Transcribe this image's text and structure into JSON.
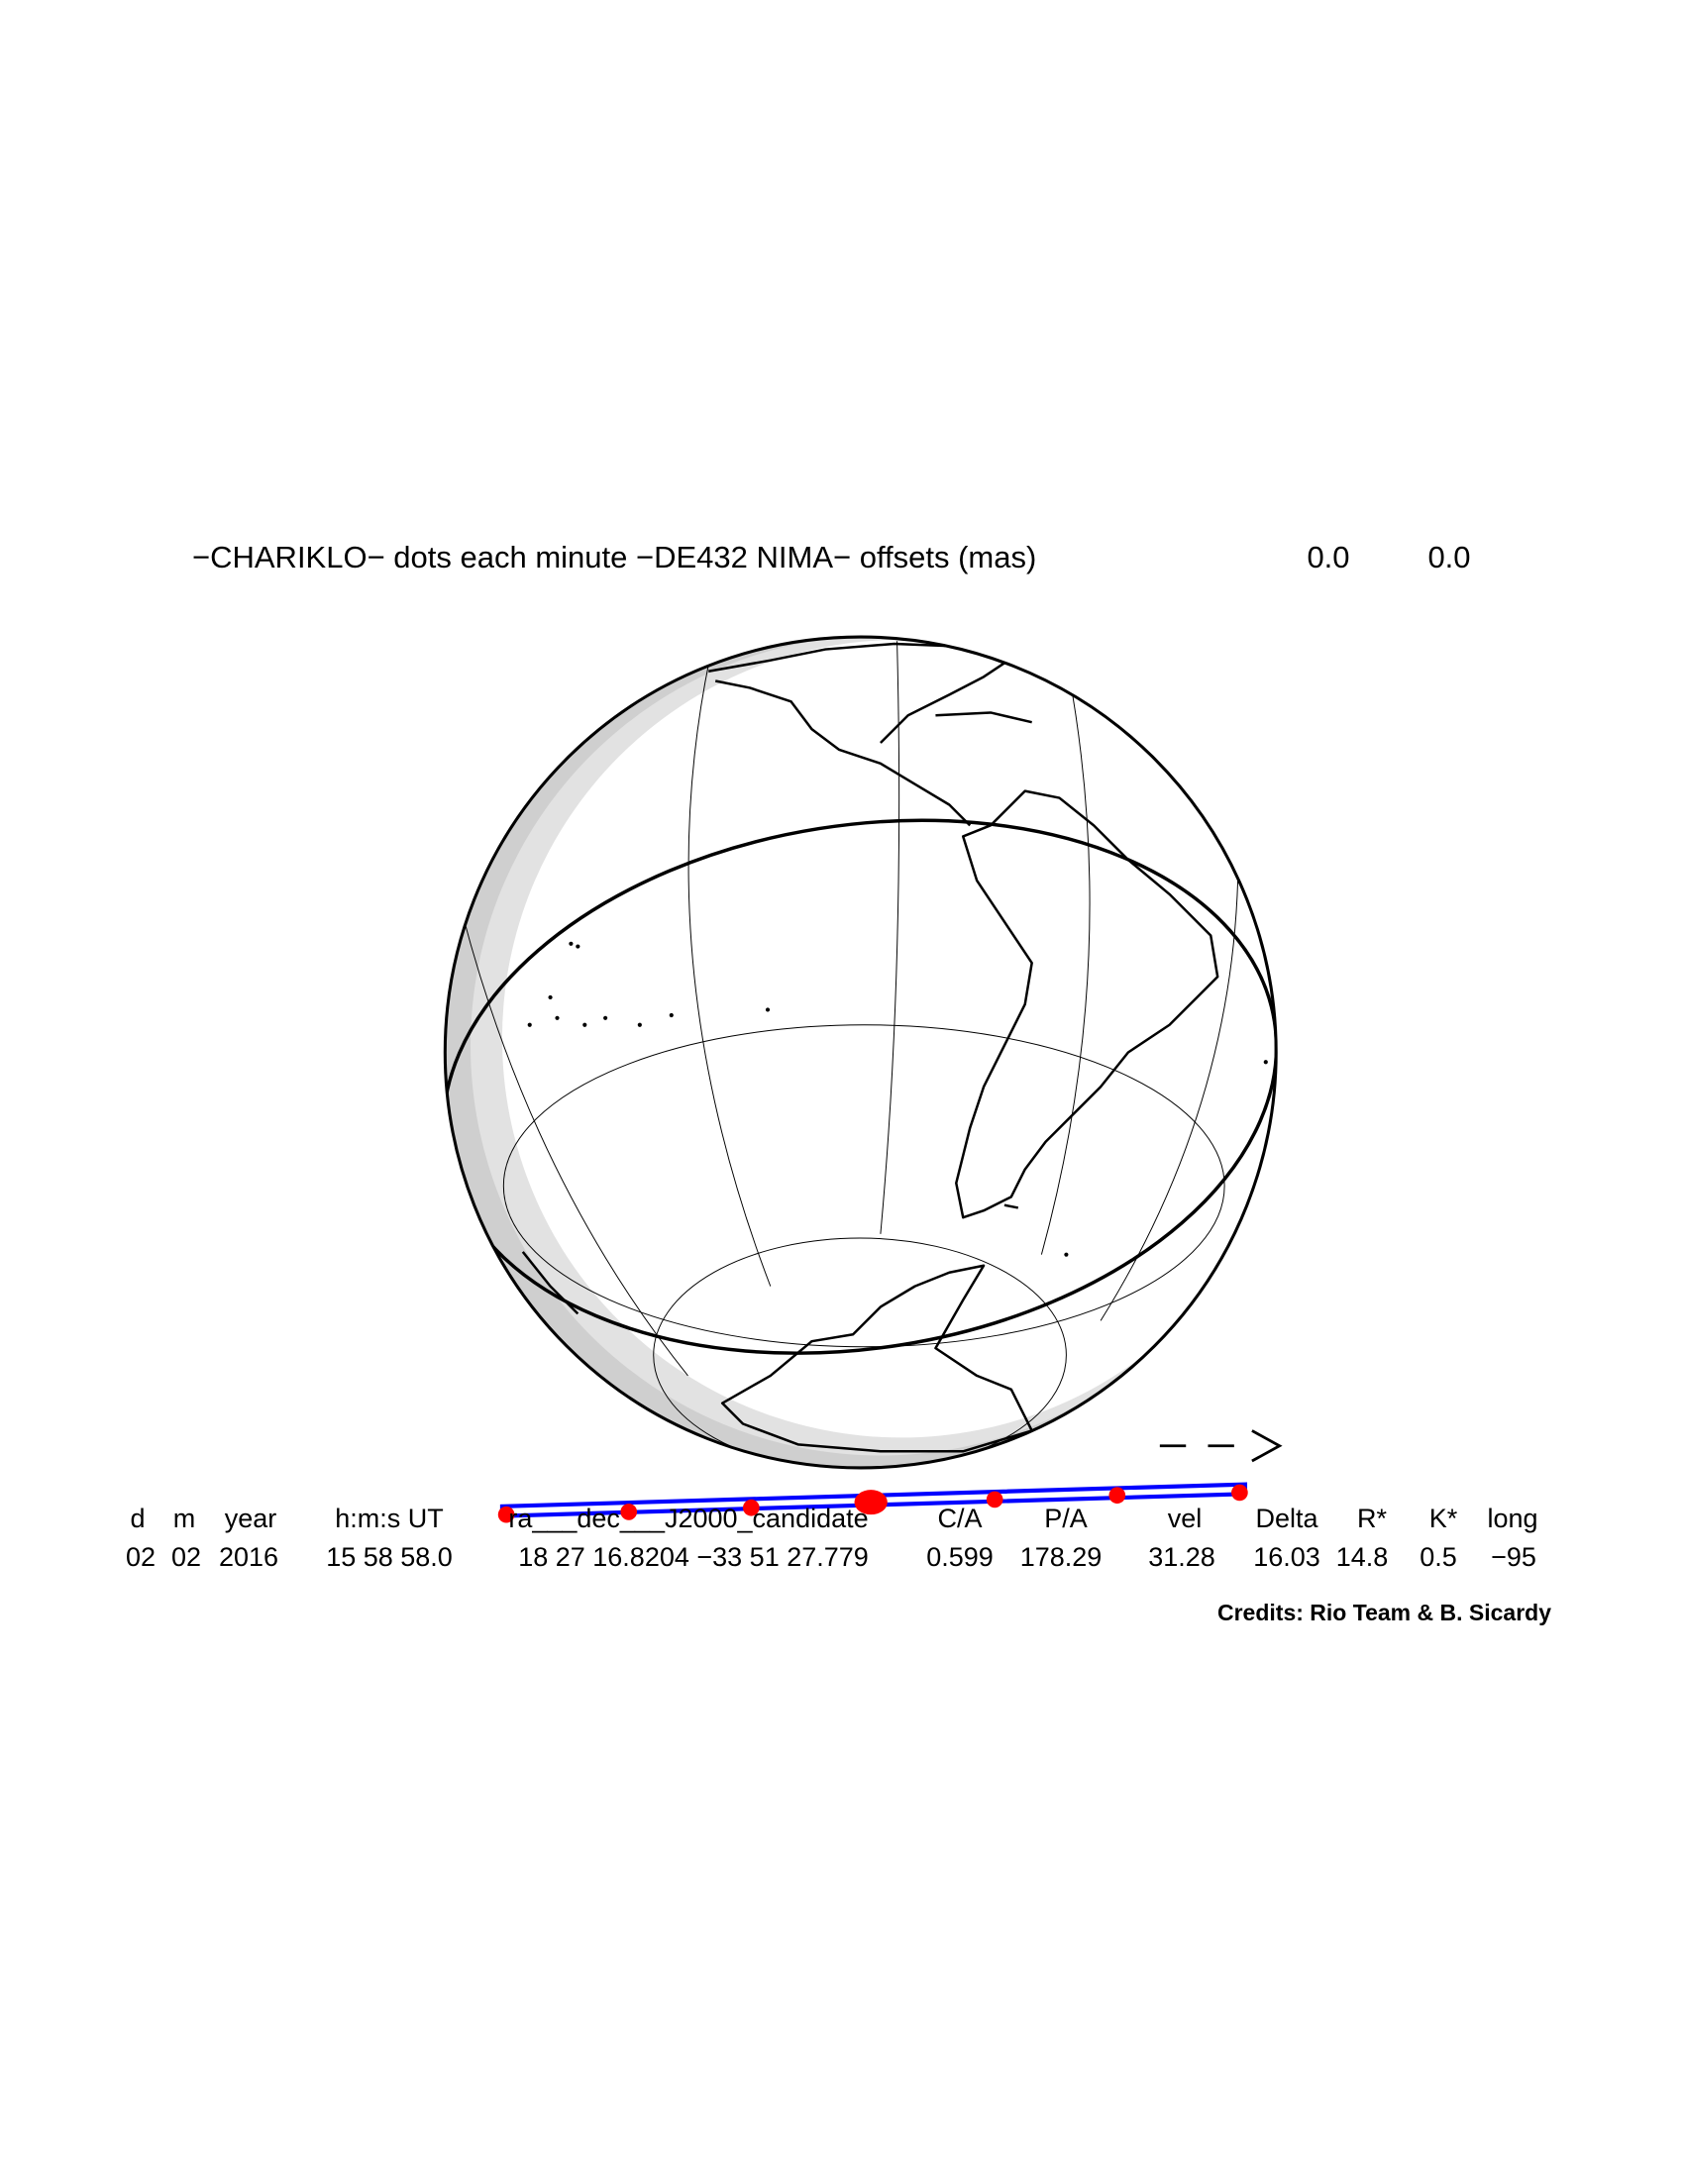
{
  "title": {
    "text": "−CHARIKLO− dots each minute −DE432 NIMA− offsets (mas)",
    "offsets": [
      "0.0",
      "0.0"
    ]
  },
  "table": {
    "headers": [
      "d",
      "m",
      "year",
      "h:m:s UT",
      "ra___dec___J2000_candidate",
      "C/A",
      "P/A",
      "vel",
      "Delta",
      "R*",
      "K*",
      "long"
    ],
    "rows": [
      [
        "02",
        "02",
        "2016",
        "15 58 58.0",
        "18 27 16.8204 −33 51 27.779",
        "0.599",
        "178.29",
        "31.28",
        "16.03",
        "14.8",
        "0.5",
        "−95"
      ]
    ]
  },
  "credits": "Credits: Rio Team & B. Sicardy"
}
